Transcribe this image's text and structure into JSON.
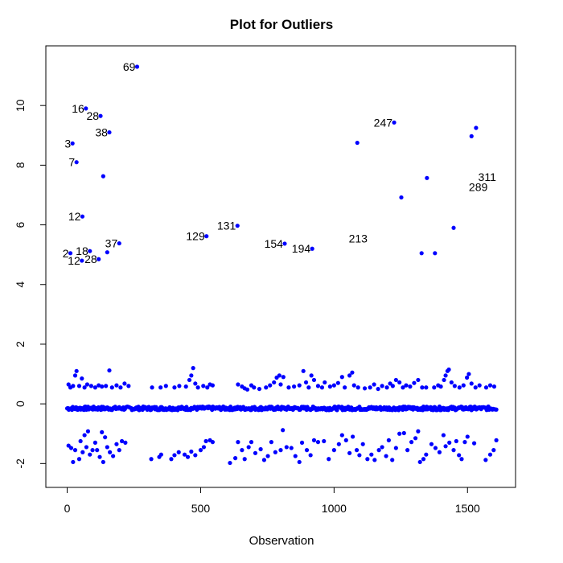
{
  "chart_data": {
    "type": "scatter",
    "title": "Plot for Outliers",
    "xlabel": "Observation",
    "ylabel": "",
    "xlim": [
      -80,
      1680
    ],
    "ylim": [
      -2.8,
      12.0
    ],
    "xticks": [
      0,
      500,
      1000,
      1500
    ],
    "yticks": [
      -2,
      0,
      2,
      4,
      6,
      8,
      10
    ],
    "xtick_labels": [
      "0",
      "500",
      "1000",
      "1500"
    ],
    "ytick_labels": [
      "-2",
      "0",
      "2",
      "4",
      "6",
      "8",
      "10"
    ],
    "grid": false,
    "legend": "none",
    "point_color": "#0000ff",
    "outliers": [
      {
        "x": 262,
        "y": 11.3,
        "label": "69"
      },
      {
        "x": 70,
        "y": 9.9,
        "label": "16"
      },
      {
        "x": 125,
        "y": 9.65,
        "label": "28"
      },
      {
        "x": 158,
        "y": 9.1,
        "label": "38"
      },
      {
        "x": 20,
        "y": 8.73,
        "label": "3"
      },
      {
        "x": 35,
        "y": 8.1,
        "label": "7"
      },
      {
        "x": 135,
        "y": 7.63,
        "label": ""
      },
      {
        "x": 57,
        "y": 6.28,
        "label": "12"
      },
      {
        "x": 12,
        "y": 5.05,
        "label": "2"
      },
      {
        "x": 85,
        "y": 5.12,
        "label": "18"
      },
      {
        "x": 55,
        "y": 4.8,
        "label": "12"
      },
      {
        "x": 118,
        "y": 4.85,
        "label": "28"
      },
      {
        "x": 150,
        "y": 5.08,
        "label": ""
      },
      {
        "x": 195,
        "y": 5.38,
        "label": "37"
      },
      {
        "x": 522,
        "y": 5.62,
        "label": "129"
      },
      {
        "x": 638,
        "y": 5.97,
        "label": "131"
      },
      {
        "x": 815,
        "y": 5.37,
        "label": "154"
      },
      {
        "x": 918,
        "y": 5.2,
        "label": "194"
      },
      {
        "x": 1087,
        "y": 8.75,
        "label": ""
      },
      {
        "x": 1225,
        "y": 9.43,
        "label": "247"
      },
      {
        "x": 1252,
        "y": 6.92,
        "label": ""
      },
      {
        "x": 1328,
        "y": 5.05,
        "label": ""
      },
      {
        "x": 1348,
        "y": 7.57,
        "label": ""
      },
      {
        "x": 1378,
        "y": 5.05,
        "label": ""
      },
      {
        "x": 1448,
        "y": 5.9,
        "label": ""
      },
      {
        "x": 1515,
        "y": 8.97,
        "label": ""
      },
      {
        "x": 1532,
        "y": 9.25,
        "label": ""
      }
    ],
    "free_labels": [
      {
        "x": 1055,
        "y": 5.55,
        "label": "213"
      },
      {
        "x": 1540,
        "y": 7.6,
        "label": "311"
      },
      {
        "x": 1505,
        "y": 7.27,
        "label": "289"
      }
    ],
    "dense_band": {
      "x_range": [
        0,
        1610
      ],
      "y_center": -0.15,
      "y_spread": 0.06
    },
    "upper_cluster": [
      {
        "x": 5,
        "y": 0.65
      },
      {
        "x": 12,
        "y": 0.55
      },
      {
        "x": 22,
        "y": 0.6
      },
      {
        "x": 30,
        "y": 0.95
      },
      {
        "x": 35,
        "y": 1.1
      },
      {
        "x": 45,
        "y": 0.6
      },
      {
        "x": 55,
        "y": 0.85
      },
      {
        "x": 65,
        "y": 0.55
      },
      {
        "x": 75,
        "y": 0.65
      },
      {
        "x": 90,
        "y": 0.6
      },
      {
        "x": 105,
        "y": 0.55
      },
      {
        "x": 118,
        "y": 0.62
      },
      {
        "x": 130,
        "y": 0.58
      },
      {
        "x": 145,
        "y": 0.6
      },
      {
        "x": 158,
        "y": 1.12
      },
      {
        "x": 168,
        "y": 0.55
      },
      {
        "x": 185,
        "y": 0.62
      },
      {
        "x": 200,
        "y": 0.55
      },
      {
        "x": 215,
        "y": 0.68
      },
      {
        "x": 230,
        "y": 0.6
      },
      {
        "x": 318,
        "y": 0.55
      },
      {
        "x": 350,
        "y": 0.55
      },
      {
        "x": 370,
        "y": 0.6
      },
      {
        "x": 402,
        "y": 0.55
      },
      {
        "x": 420,
        "y": 0.6
      },
      {
        "x": 445,
        "y": 0.58
      },
      {
        "x": 458,
        "y": 0.8
      },
      {
        "x": 465,
        "y": 0.95
      },
      {
        "x": 472,
        "y": 1.2
      },
      {
        "x": 480,
        "y": 0.68
      },
      {
        "x": 490,
        "y": 0.55
      },
      {
        "x": 510,
        "y": 0.6
      },
      {
        "x": 525,
        "y": 0.55
      },
      {
        "x": 535,
        "y": 0.65
      },
      {
        "x": 545,
        "y": 0.62
      },
      {
        "x": 640,
        "y": 0.65
      },
      {
        "x": 655,
        "y": 0.58
      },
      {
        "x": 665,
        "y": 0.52
      },
      {
        "x": 675,
        "y": 0.48
      },
      {
        "x": 690,
        "y": 0.62
      },
      {
        "x": 700,
        "y": 0.55
      },
      {
        "x": 720,
        "y": 0.5
      },
      {
        "x": 745,
        "y": 0.55
      },
      {
        "x": 760,
        "y": 0.62
      },
      {
        "x": 775,
        "y": 0.72
      },
      {
        "x": 785,
        "y": 0.88
      },
      {
        "x": 795,
        "y": 0.95
      },
      {
        "x": 800,
        "y": 0.65
      },
      {
        "x": 810,
        "y": 0.9
      },
      {
        "x": 830,
        "y": 0.55
      },
      {
        "x": 850,
        "y": 0.58
      },
      {
        "x": 870,
        "y": 0.62
      },
      {
        "x": 885,
        "y": 1.1
      },
      {
        "x": 895,
        "y": 0.72
      },
      {
        "x": 905,
        "y": 0.55
      },
      {
        "x": 915,
        "y": 0.95
      },
      {
        "x": 925,
        "y": 0.8
      },
      {
        "x": 940,
        "y": 0.6
      },
      {
        "x": 955,
        "y": 0.55
      },
      {
        "x": 965,
        "y": 0.72
      },
      {
        "x": 985,
        "y": 0.58
      },
      {
        "x": 1000,
        "y": 0.62
      },
      {
        "x": 1015,
        "y": 0.7
      },
      {
        "x": 1030,
        "y": 0.9
      },
      {
        "x": 1040,
        "y": 0.55
      },
      {
        "x": 1058,
        "y": 0.95
      },
      {
        "x": 1068,
        "y": 1.05
      },
      {
        "x": 1075,
        "y": 0.62
      },
      {
        "x": 1090,
        "y": 0.55
      },
      {
        "x": 1115,
        "y": 0.52
      },
      {
        "x": 1135,
        "y": 0.55
      },
      {
        "x": 1150,
        "y": 0.65
      },
      {
        "x": 1165,
        "y": 0.5
      },
      {
        "x": 1180,
        "y": 0.6
      },
      {
        "x": 1198,
        "y": 0.55
      },
      {
        "x": 1210,
        "y": 0.68
      },
      {
        "x": 1220,
        "y": 0.6
      },
      {
        "x": 1232,
        "y": 0.8
      },
      {
        "x": 1245,
        "y": 0.72
      },
      {
        "x": 1258,
        "y": 0.55
      },
      {
        "x": 1270,
        "y": 0.62
      },
      {
        "x": 1285,
        "y": 0.58
      },
      {
        "x": 1300,
        "y": 0.7
      },
      {
        "x": 1315,
        "y": 0.8
      },
      {
        "x": 1330,
        "y": 0.55
      },
      {
        "x": 1345,
        "y": 0.55
      },
      {
        "x": 1375,
        "y": 0.55
      },
      {
        "x": 1390,
        "y": 0.62
      },
      {
        "x": 1400,
        "y": 0.58
      },
      {
        "x": 1412,
        "y": 0.8
      },
      {
        "x": 1418,
        "y": 0.95
      },
      {
        "x": 1425,
        "y": 1.1
      },
      {
        "x": 1430,
        "y": 1.15
      },
      {
        "x": 1440,
        "y": 0.72
      },
      {
        "x": 1452,
        "y": 0.6
      },
      {
        "x": 1470,
        "y": 0.55
      },
      {
        "x": 1485,
        "y": 0.62
      },
      {
        "x": 1498,
        "y": 0.88
      },
      {
        "x": 1505,
        "y": 1.0
      },
      {
        "x": 1515,
        "y": 0.68
      },
      {
        "x": 1530,
        "y": 0.55
      },
      {
        "x": 1545,
        "y": 0.62
      },
      {
        "x": 1570,
        "y": 0.55
      },
      {
        "x": 1585,
        "y": 0.62
      },
      {
        "x": 1600,
        "y": 0.58
      }
    ],
    "lower_cluster": [
      {
        "x": 5,
        "y": -1.4
      },
      {
        "x": 15,
        "y": -1.48
      },
      {
        "x": 22,
        "y": -1.95
      },
      {
        "x": 30,
        "y": -1.55
      },
      {
        "x": 45,
        "y": -1.85
      },
      {
        "x": 50,
        "y": -1.25
      },
      {
        "x": 58,
        "y": -1.62
      },
      {
        "x": 65,
        "y": -1.05
      },
      {
        "x": 72,
        "y": -1.45
      },
      {
        "x": 78,
        "y": -0.92
      },
      {
        "x": 85,
        "y": -1.7
      },
      {
        "x": 95,
        "y": -1.55
      },
      {
        "x": 105,
        "y": -1.3
      },
      {
        "x": 112,
        "y": -1.55
      },
      {
        "x": 122,
        "y": -1.78
      },
      {
        "x": 130,
        "y": -0.95
      },
      {
        "x": 135,
        "y": -1.95
      },
      {
        "x": 142,
        "y": -1.12
      },
      {
        "x": 150,
        "y": -1.45
      },
      {
        "x": 160,
        "y": -1.62
      },
      {
        "x": 172,
        "y": -1.75
      },
      {
        "x": 185,
        "y": -1.35
      },
      {
        "x": 195,
        "y": -1.55
      },
      {
        "x": 205,
        "y": -1.25
      },
      {
        "x": 218,
        "y": -1.3
      },
      {
        "x": 315,
        "y": -1.85
      },
      {
        "x": 345,
        "y": -1.78
      },
      {
        "x": 352,
        "y": -1.7
      },
      {
        "x": 390,
        "y": -1.85
      },
      {
        "x": 402,
        "y": -1.72
      },
      {
        "x": 418,
        "y": -1.62
      },
      {
        "x": 440,
        "y": -1.7
      },
      {
        "x": 452,
        "y": -1.78
      },
      {
        "x": 465,
        "y": -1.6
      },
      {
        "x": 480,
        "y": -1.72
      },
      {
        "x": 500,
        "y": -1.55
      },
      {
        "x": 512,
        "y": -1.45
      },
      {
        "x": 520,
        "y": -1.25
      },
      {
        "x": 535,
        "y": -1.22
      },
      {
        "x": 545,
        "y": -1.28
      },
      {
        "x": 610,
        "y": -1.98
      },
      {
        "x": 630,
        "y": -1.82
      },
      {
        "x": 640,
        "y": -1.28
      },
      {
        "x": 655,
        "y": -1.55
      },
      {
        "x": 665,
        "y": -1.85
      },
      {
        "x": 680,
        "y": -1.45
      },
      {
        "x": 690,
        "y": -1.28
      },
      {
        "x": 705,
        "y": -1.65
      },
      {
        "x": 725,
        "y": -1.52
      },
      {
        "x": 738,
        "y": -1.88
      },
      {
        "x": 752,
        "y": -1.75
      },
      {
        "x": 765,
        "y": -1.28
      },
      {
        "x": 780,
        "y": -1.62
      },
      {
        "x": 800,
        "y": -1.55
      },
      {
        "x": 808,
        "y": -0.88
      },
      {
        "x": 822,
        "y": -1.45
      },
      {
        "x": 840,
        "y": -1.48
      },
      {
        "x": 855,
        "y": -1.75
      },
      {
        "x": 870,
        "y": -1.95
      },
      {
        "x": 880,
        "y": -1.3
      },
      {
        "x": 898,
        "y": -1.55
      },
      {
        "x": 912,
        "y": -1.72
      },
      {
        "x": 925,
        "y": -1.22
      },
      {
        "x": 940,
        "y": -1.28
      },
      {
        "x": 962,
        "y": -1.25
      },
      {
        "x": 980,
        "y": -1.85
      },
      {
        "x": 1000,
        "y": -1.55
      },
      {
        "x": 1018,
        "y": -1.35
      },
      {
        "x": 1030,
        "y": -1.05
      },
      {
        "x": 1045,
        "y": -1.22
      },
      {
        "x": 1058,
        "y": -1.65
      },
      {
        "x": 1070,
        "y": -1.1
      },
      {
        "x": 1085,
        "y": -1.55
      },
      {
        "x": 1095,
        "y": -1.72
      },
      {
        "x": 1108,
        "y": -1.35
      },
      {
        "x": 1125,
        "y": -1.85
      },
      {
        "x": 1140,
        "y": -1.7
      },
      {
        "x": 1152,
        "y": -1.88
      },
      {
        "x": 1168,
        "y": -1.55
      },
      {
        "x": 1180,
        "y": -1.45
      },
      {
        "x": 1195,
        "y": -1.75
      },
      {
        "x": 1205,
        "y": -1.22
      },
      {
        "x": 1218,
        "y": -1.88
      },
      {
        "x": 1232,
        "y": -1.48
      },
      {
        "x": 1245,
        "y": -1.0
      },
      {
        "x": 1262,
        "y": -0.98
      },
      {
        "x": 1275,
        "y": -1.55
      },
      {
        "x": 1290,
        "y": -1.28
      },
      {
        "x": 1305,
        "y": -1.15
      },
      {
        "x": 1315,
        "y": -0.92
      },
      {
        "x": 1322,
        "y": -1.95
      },
      {
        "x": 1335,
        "y": -1.85
      },
      {
        "x": 1345,
        "y": -1.7
      },
      {
        "x": 1365,
        "y": -1.35
      },
      {
        "x": 1380,
        "y": -1.48
      },
      {
        "x": 1395,
        "y": -1.62
      },
      {
        "x": 1410,
        "y": -1.05
      },
      {
        "x": 1418,
        "y": -1.42
      },
      {
        "x": 1432,
        "y": -1.3
      },
      {
        "x": 1448,
        "y": -1.55
      },
      {
        "x": 1458,
        "y": -1.25
      },
      {
        "x": 1468,
        "y": -1.72
      },
      {
        "x": 1478,
        "y": -1.85
      },
      {
        "x": 1490,
        "y": -1.28
      },
      {
        "x": 1500,
        "y": -1.1
      },
      {
        "x": 1525,
        "y": -1.32
      },
      {
        "x": 1568,
        "y": -1.88
      },
      {
        "x": 1585,
        "y": -1.7
      },
      {
        "x": 1598,
        "y": -1.55
      },
      {
        "x": 1608,
        "y": -1.22
      }
    ]
  }
}
